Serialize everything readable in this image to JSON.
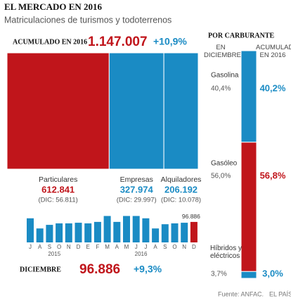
{
  "header": {
    "title": "EL MERCADO EN 2016",
    "subtitle": "Matriculaciones de turismos y todoterrenos"
  },
  "chart_data": [
    {
      "type": "hstack",
      "title": "ACUMULADO EN 2016",
      "total_label": "1.147.007",
      "change_label": "+10,9%",
      "categories": [
        "Particulares",
        "Empresas",
        "Alquiladores"
      ],
      "values": [
        612841,
        327974,
        206192
      ],
      "value_labels": [
        "612.841",
        "327.974",
        "206.192"
      ],
      "december_labels": [
        "(DIC: 56.811)",
        "(DIC: 29.997)",
        "(DIC: 10.078)"
      ],
      "colors": [
        "#c0151b",
        "#1a8bc4",
        "#1a8bc4"
      ]
    },
    {
      "type": "bar",
      "title": "DICIEMBRE",
      "total_label": "96.886",
      "change_label": "+9,3%",
      "categories": [
        "J",
        "A",
        "S",
        "O",
        "N",
        "D",
        "E",
        "F",
        "M",
        "A",
        "M",
        "J",
        "J",
        "A",
        "S",
        "O",
        "N",
        "D"
      ],
      "values": [
        114000,
        66000,
        83000,
        90000,
        90000,
        93000,
        90000,
        97000,
        125000,
        97000,
        125000,
        125000,
        114000,
        66000,
        86000,
        90000,
        93000,
        96886
      ],
      "value_labels": [
        null,
        null,
        null,
        null,
        null,
        null,
        null,
        null,
        null,
        null,
        null,
        null,
        null,
        null,
        null,
        null,
        null,
        "96.886"
      ],
      "years": [
        "2015",
        "2016"
      ],
      "color": "#1a8bc4",
      "highlight_color": "#c0151b"
    },
    {
      "type": "vstack",
      "title": "POR CARBURANTE",
      "column_headers": [
        "EN DICIEMBRE",
        "ACUMULADO EN 2016"
      ],
      "categories": [
        "Gasolina",
        "Gasóleo",
        "Híbridos y eléctricos"
      ],
      "december_values": [
        40.4,
        56.0,
        3.7
      ],
      "december_labels": [
        "40,4%",
        "56,0%",
        "3,7%"
      ],
      "values": [
        40.2,
        56.8,
        3.0
      ],
      "value_labels": [
        "40,2%",
        "56,8%",
        "3,0%"
      ],
      "colors": [
        "#1a8bc4",
        "#c0151b",
        "#1a8bc4"
      ]
    }
  ],
  "footer": {
    "source": "Fuente: ANFAC.",
    "brand": "EL PAÍS"
  }
}
